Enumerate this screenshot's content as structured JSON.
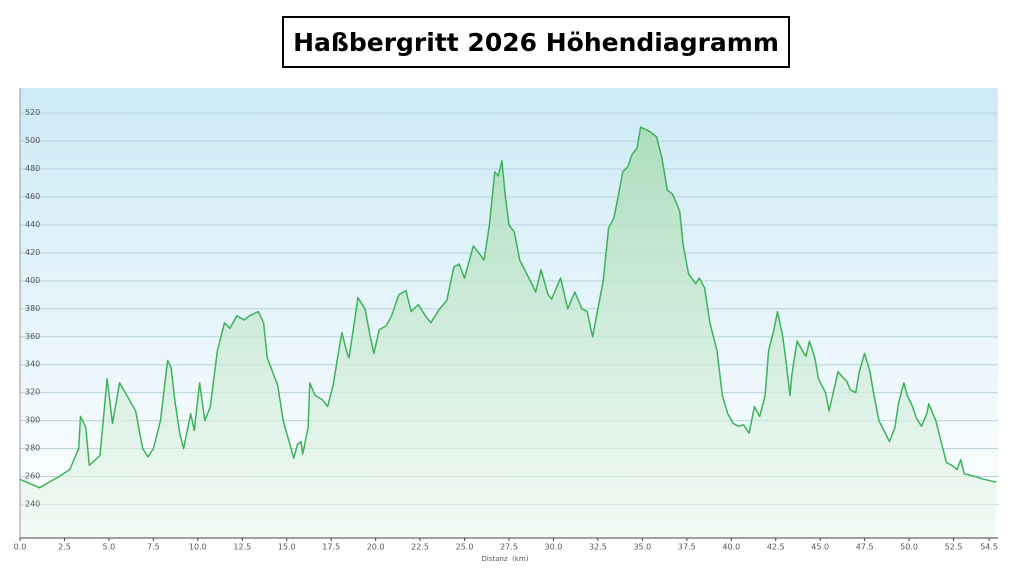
{
  "chart_data": {
    "type": "area",
    "title": "Haßbergritt 2026 Höhendiagramm",
    "x_label": "Distanz  (km)",
    "color": "#3cb35a",
    "x": [
      0.0,
      1.1,
      2.2,
      2.8,
      3.3,
      3.4,
      3.7,
      3.9,
      4.5,
      4.9,
      5.2,
      5.6,
      6.5,
      6.9,
      7.2,
      7.5,
      7.9,
      8.3,
      8.5,
      8.7,
      9.0,
      9.2,
      9.6,
      9.8,
      10.1,
      10.4,
      10.7,
      11.1,
      11.5,
      11.8,
      12.2,
      12.6,
      12.9,
      13.4,
      13.7,
      13.9,
      14.5,
      14.8,
      15.2,
      15.4,
      15.6,
      15.8,
      15.9,
      16.2,
      16.3,
      16.6,
      17.0,
      17.3,
      17.6,
      17.9,
      18.1,
      18.4,
      18.5,
      18.8,
      19.0,
      19.4,
      19.7,
      19.9,
      20.2,
      20.6,
      20.9,
      21.3,
      21.7,
      22.0,
      22.4,
      22.8,
      23.1,
      23.6,
      24.0,
      24.4,
      24.7,
      25.0,
      25.5,
      25.8,
      26.1,
      26.4,
      26.7,
      26.9,
      27.1,
      27.3,
      27.5,
      27.8,
      28.1,
      28.3,
      28.7,
      29.0,
      29.3,
      29.7,
      29.9,
      30.4,
      30.8,
      31.2,
      31.6,
      31.9,
      32.2,
      32.5,
      32.8,
      33.1,
      33.4,
      33.6,
      33.9,
      34.2,
      34.4,
      34.7,
      34.9,
      35.4,
      35.8,
      36.1,
      36.4,
      36.7,
      37.1,
      37.3,
      37.6,
      38.0,
      38.2,
      38.5,
      38.8,
      39.2,
      39.5,
      39.8,
      40.1,
      40.4,
      40.7,
      41.0,
      41.3,
      41.6,
      41.9,
      42.1,
      42.4,
      42.6,
      42.9,
      43.1,
      43.3,
      43.4,
      43.7,
      44.0,
      44.2,
      44.4,
      44.7,
      44.9,
      45.3,
      45.5,
      45.7,
      46.0,
      46.2,
      46.5,
      46.7,
      47.0,
      47.2,
      47.5,
      47.8,
      48.0,
      48.3,
      48.7,
      48.9,
      49.2,
      49.4,
      49.7,
      49.9,
      50.2,
      50.4,
      50.7,
      51.0,
      51.1,
      51.5,
      51.8,
      52.1,
      52.4,
      52.7,
      52.9,
      53.1,
      53.7,
      54.2,
      54.9
    ],
    "values": [
      258,
      252,
      260,
      265,
      280,
      303,
      295,
      268,
      275,
      330,
      298,
      327,
      307,
      280,
      274,
      280,
      300,
      343,
      338,
      315,
      290,
      280,
      305,
      293,
      327,
      300,
      310,
      350,
      370,
      366,
      375,
      372,
      375,
      378,
      370,
      345,
      325,
      300,
      282,
      273,
      283,
      285,
      276,
      295,
      327,
      318,
      315,
      310,
      325,
      348,
      363,
      348,
      345,
      370,
      388,
      380,
      360,
      348,
      365,
      368,
      375,
      390,
      393,
      378,
      383,
      375,
      370,
      380,
      386,
      410,
      412,
      402,
      425,
      420,
      415,
      440,
      478,
      475,
      486,
      460,
      440,
      435,
      415,
      410,
      400,
      392,
      408,
      390,
      387,
      402,
      380,
      392,
      380,
      378,
      360,
      380,
      400,
      438,
      445,
      458,
      478,
      482,
      490,
      495,
      510,
      507,
      503,
      488,
      465,
      462,
      450,
      425,
      405,
      398,
      402,
      395,
      370,
      350,
      318,
      305,
      298,
      296,
      297,
      291,
      310,
      303,
      318,
      350,
      365,
      378,
      360,
      340,
      318,
      332,
      357,
      350,
      346,
      357,
      345,
      330,
      320,
      307,
      318,
      335,
      332,
      328,
      322,
      320,
      335,
      348,
      335,
      320,
      300,
      290,
      285,
      295,
      312,
      327,
      318,
      310,
      302,
      296,
      305,
      312,
      300,
      285,
      270,
      268,
      265,
      272,
      262,
      260,
      258,
      256
    ],
    "xlim": [
      0,
      55
    ],
    "ylim": [
      216,
      538
    ],
    "yticks": [
      240,
      260,
      280,
      300,
      320,
      340,
      360,
      380,
      400,
      420,
      440,
      460,
      480,
      500,
      520
    ],
    "xticks": [
      {
        "value": 0,
        "label": "0.0"
      },
      2.5,
      {
        "value": 5,
        "label": "5.0"
      },
      7.5,
      {
        "value": 10,
        "label": "10.0"
      },
      12.5,
      {
        "value": 15,
        "label": "15.0"
      },
      17.5,
      {
        "value": 20,
        "label": "20.0"
      },
      22.5,
      {
        "value": 25,
        "label": "25.0"
      },
      27.5,
      {
        "value": 30,
        "label": "30.0"
      },
      32.5,
      {
        "value": 35,
        "label": "35.0"
      },
      37.5,
      {
        "value": 40,
        "label": "40.0"
      },
      42.5,
      {
        "value": 45,
        "label": "45.0"
      },
      47.5,
      {
        "value": 50,
        "label": "50.0"
      },
      52.5,
      54.5
    ],
    "grid": true
  }
}
